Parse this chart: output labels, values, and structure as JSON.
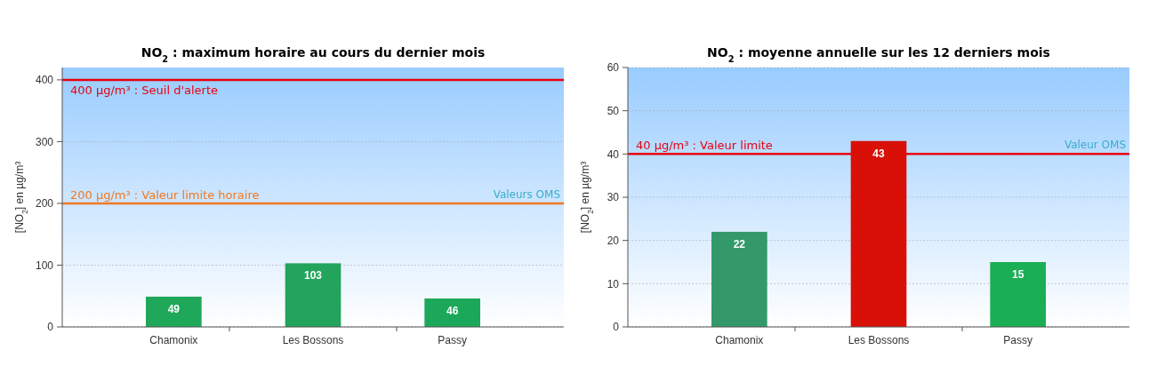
{
  "chart_data": [
    {
      "type": "bar",
      "title": "NO$_{2}$ : maximum horaire au cours du dernier mois",
      "ylabel": "[NO$_{2}$] en µg/m³",
      "categories": [
        "Chamonix",
        "Les Bossons",
        "Passy"
      ],
      "values": [
        49,
        103,
        46
      ],
      "colors": [
        "#1fa85a",
        "#22a45c",
        "#1ba85a"
      ],
      "data_labels": true,
      "ylim": [
        0,
        420
      ],
      "yticks": [
        0,
        100,
        200,
        300,
        400
      ],
      "grid": "y",
      "ref_lines": [
        {
          "axis": "y",
          "value": 400,
          "label": "400 µg/m³ : Seuil d'alerte",
          "color": "#e8000f"
        },
        {
          "axis": "y",
          "value": 200,
          "label": "200 µg/m³ : Valeur limite horaire",
          "color": "#f07820"
        }
      ],
      "annotations": [
        {
          "text": "Valeurs OMS",
          "y": 200
        }
      ]
    },
    {
      "type": "bar",
      "title": "NO$_{2}$ : moyenne annuelle sur les 12 derniers mois",
      "ylabel": "[NO$_{2}$] en µg/m³",
      "categories": [
        "Chamonix",
        "Les Bossons",
        "Passy"
      ],
      "values": [
        22,
        43,
        15
      ],
      "colors": [
        "#33996a",
        "#d81008",
        "#1aae55"
      ],
      "data_labels": true,
      "ylim": [
        0,
        60
      ],
      "yticks": [
        0,
        10,
        20,
        30,
        40,
        50,
        60
      ],
      "grid": "y",
      "ref_lines": [
        {
          "axis": "y",
          "value": 40,
          "label": "40 µg/m³ : Valeur limite",
          "color": "#e8000f"
        }
      ],
      "annotations": [
        {
          "text": "Valeur OMS",
          "y": 40
        }
      ]
    }
  ]
}
